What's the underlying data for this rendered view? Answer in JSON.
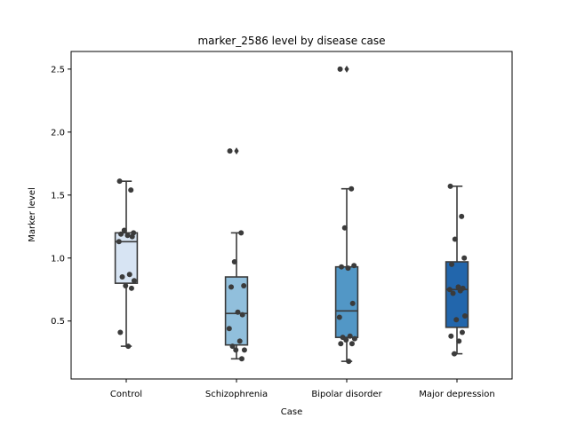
{
  "chart_data": {
    "type": "box",
    "title": "marker_2586 level by disease case",
    "xlabel": "Case",
    "ylabel": "Marker level",
    "ylim": [
      0.04,
      2.64
    ],
    "yticks": [
      0.5,
      1.0,
      1.5,
      2.0,
      2.5
    ],
    "ytick_labels": [
      "0.5",
      "1.0",
      "1.5",
      "2.0",
      "2.5"
    ],
    "grid": false,
    "categories": [
      "Control",
      "Schizophrenia",
      "Bipolar disorder",
      "Major depression"
    ],
    "colors": [
      "#d7e4f3",
      "#91bfdc",
      "#5297c6",
      "#2266ac"
    ],
    "edge_color": "#3a3a3a",
    "point_color": "#3b3b3b",
    "boxes": [
      {
        "q1": 0.8,
        "median": 1.13,
        "q3": 1.2,
        "whislo": 0.3,
        "whishi": 1.61,
        "fliers": []
      },
      {
        "q1": 0.31,
        "median": 0.56,
        "q3": 0.85,
        "whislo": 0.2,
        "whishi": 1.2,
        "fliers": [
          1.85
        ]
      },
      {
        "q1": 0.37,
        "median": 0.58,
        "q3": 0.93,
        "whislo": 0.18,
        "whishi": 1.55,
        "fliers": [
          2.5
        ]
      },
      {
        "q1": 0.45,
        "median": 0.75,
        "q3": 0.97,
        "whislo": 0.24,
        "whishi": 1.57,
        "fliers": []
      }
    ],
    "points": [
      [
        1.61,
        1.54,
        1.22,
        1.2,
        1.19,
        1.18,
        1.17,
        1.13,
        0.87,
        0.85,
        0.82,
        0.78,
        0.76,
        0.41,
        0.3
      ],
      [
        1.85,
        1.2,
        0.97,
        0.78,
        0.77,
        0.57,
        0.55,
        0.44,
        0.34,
        0.3,
        0.27,
        0.27,
        0.2
      ],
      [
        2.5,
        1.55,
        1.24,
        0.94,
        0.93,
        0.92,
        0.64,
        0.53,
        0.38,
        0.37,
        0.36,
        0.35,
        0.32,
        0.32,
        0.18
      ],
      [
        1.57,
        1.33,
        1.15,
        1.0,
        0.95,
        0.77,
        0.76,
        0.75,
        0.74,
        0.72,
        0.54,
        0.51,
        0.41,
        0.38,
        0.34,
        0.24
      ]
    ]
  }
}
